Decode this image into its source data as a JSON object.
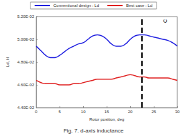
{
  "chart_data": {
    "type": "line",
    "title": "Fig. 7. d-axis inductance",
    "x_label": "Rotor position, deg",
    "y_label": "Ld, H",
    "x": [
      0,
      1,
      2,
      3,
      4,
      5,
      6,
      7,
      8,
      9,
      10,
      11,
      12,
      13,
      14,
      15,
      16,
      17,
      18,
      19,
      20,
      21,
      22,
      23,
      24,
      25,
      26,
      27,
      28,
      29,
      30
    ],
    "series": [
      {
        "name": "Conventional design : Ld",
        "color": "#2020e0",
        "values": [
          0.0494,
          0.049,
          0.0486,
          0.0484,
          0.0484,
          0.0486,
          0.0489,
          0.0492,
          0.0494,
          0.0496,
          0.0497,
          0.05,
          0.0503,
          0.0504,
          0.0503,
          0.05,
          0.0496,
          0.0494,
          0.0494,
          0.0496,
          0.05,
          0.0503,
          0.0504,
          0.0504,
          0.0503,
          0.0502,
          0.0501,
          0.05,
          0.0499,
          0.0497,
          0.0494
        ]
      },
      {
        "name": "Best case : Ld",
        "color": "#e02020",
        "values": [
          0.0464,
          0.0462,
          0.0461,
          0.0461,
          0.0461,
          0.046,
          0.046,
          0.046,
          0.0461,
          0.0461,
          0.0462,
          0.0463,
          0.0464,
          0.0465,
          0.0465,
          0.0465,
          0.0465,
          0.0466,
          0.0467,
          0.0468,
          0.0469,
          0.0468,
          0.0467,
          0.0467,
          0.0466,
          0.0466,
          0.0466,
          0.0466,
          0.0466,
          0.0465,
          0.0464
        ]
      }
    ],
    "annotations": [
      {
        "text": "C",
        "x": 22.5
      }
    ],
    "xlim": [
      0,
      30
    ],
    "xticks": [
      0,
      5,
      10,
      15,
      20,
      25,
      30
    ],
    "ylim": [
      0.044,
      0.052
    ],
    "yticks": [
      {
        "value": 0.044,
        "label": "4.40E-02"
      },
      {
        "value": 0.046,
        "label": "4.60E-02"
      },
      {
        "value": 0.048,
        "label": "4.80E-02"
      },
      {
        "value": 0.05,
        "label": "5.00E-02"
      },
      {
        "value": 0.052,
        "label": "5.20E-02"
      }
    ],
    "grid": false,
    "legend": "top"
  }
}
